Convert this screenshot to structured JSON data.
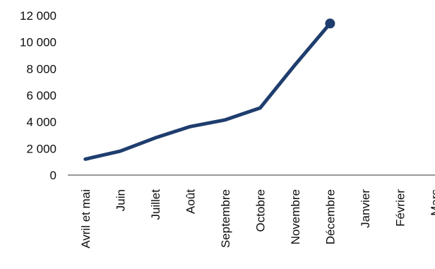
{
  "chart_data": {
    "type": "line",
    "categories": [
      "Avril et mai",
      "Juin",
      "Juillet",
      "Août",
      "Septembre",
      "Octobre",
      "Novembre",
      "Décembre",
      "Janvier",
      "Février",
      "Mars"
    ],
    "series": [
      {
        "values": [
          1200,
          1800,
          2800,
          3650,
          4150,
          5050,
          8300,
          11400,
          null,
          null,
          null
        ]
      }
    ],
    "y_tick_labels": [
      "0",
      "2 000",
      "4 000",
      "6 000",
      "8 000",
      "10 000",
      "12 000"
    ],
    "ylim": [
      0,
      12000
    ],
    "y_tick_step": 2000,
    "grid": false,
    "legend": "none",
    "end_marker": true,
    "colors": {
      "line": "#1f3d6e",
      "axis": "#333333",
      "text": "#0d0d0d"
    }
  }
}
